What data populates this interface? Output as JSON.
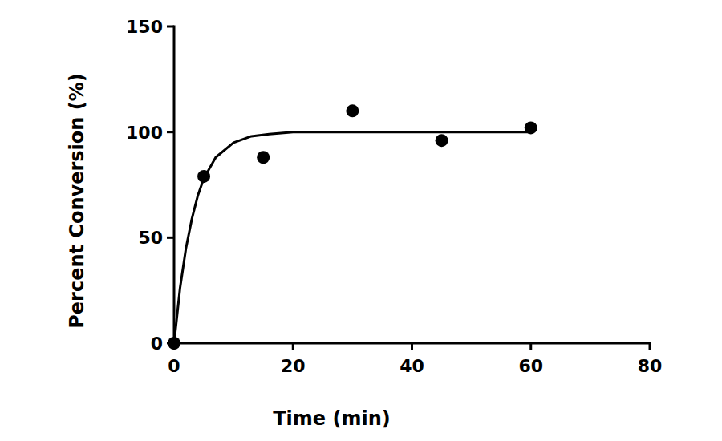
{
  "chart_data": {
    "type": "scatter",
    "xlabel": "Time (min)",
    "ylabel": "Percent Conversion (%)",
    "xlim": [
      0,
      80
    ],
    "xticks": [
      0,
      20,
      40,
      60,
      80
    ],
    "ylim": [
      0,
      150
    ],
    "yticks": [
      0,
      50,
      100,
      150
    ],
    "grid": false,
    "series": [
      {
        "type": "scatter",
        "marker": "circle",
        "color": "#000000",
        "x": [
          0,
          5,
          15,
          30,
          45,
          60
        ],
        "values": [
          0,
          79,
          88,
          110,
          96,
          102
        ]
      },
      {
        "type": "line",
        "line_style": "solid",
        "color": "#000000",
        "x": [
          0,
          1,
          2,
          3,
          4,
          5,
          7,
          10,
          13,
          16,
          20,
          30,
          45,
          60
        ],
        "values": [
          0,
          26,
          45,
          59,
          70,
          78,
          88,
          95,
          98,
          99,
          100,
          100,
          100,
          100
        ]
      }
    ]
  }
}
